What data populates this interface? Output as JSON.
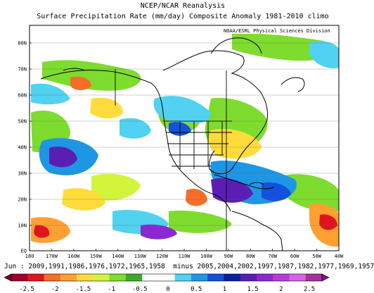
{
  "title": "NCEP/NCAR Reanalysis",
  "subtitle": "Surface Precipitation Rate (mm/day) Composite Anomaly 1981-2010 climo",
  "credit": "NOAA/ESRL Physical Sciences Division",
  "caption": "Jun : 2009,1991,1986,1976,1972,1965,1958  minus 2005,2004,2002,1997,1987,1982,1977,1969,1957",
  "lat_labels": [
    "80N",
    "70N",
    "60N",
    "50N",
    "40N",
    "30N",
    "20N",
    "10N",
    "EQ"
  ],
  "lon_labels": [
    "180",
    "170W",
    "160W",
    "150W",
    "140W",
    "130W",
    "120W",
    "110W",
    "100W",
    "90W",
    "80W",
    "70W",
    "60W",
    "50W",
    "40W"
  ],
  "colorbar": {
    "tick_labels": [
      "-2.5",
      "-2",
      "-1.5",
      "-1",
      "-0.5",
      "0",
      "0.5",
      "1",
      "1.5",
      "2",
      "2.5"
    ],
    "colors": [
      "#a0002a",
      "#e0141e",
      "#f56e28",
      "#ffa032",
      "#ffdc3c",
      "#d2f53c",
      "#7ddc2d",
      "#3ca82d",
      "#ffffff",
      "#ffffff",
      "#50d2f0",
      "#1e96e6",
      "#1450dc",
      "#0a1ea0",
      "#5a1eb4",
      "#8c28d2",
      "#b43cdc",
      "#d264e6",
      "#a0329b"
    ]
  },
  "map_extent": {
    "lon": [
      -180,
      -40
    ],
    "lat": [
      0,
      85
    ]
  }
}
